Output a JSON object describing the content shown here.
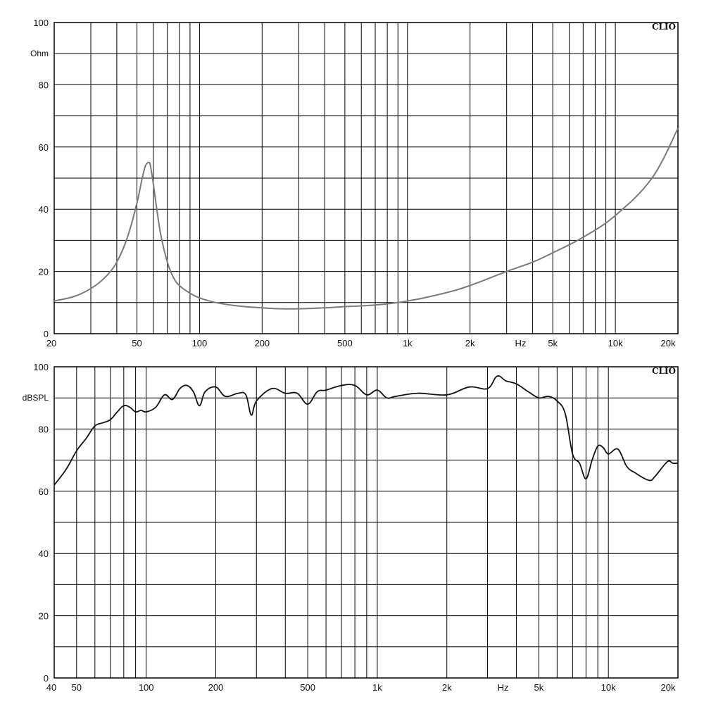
{
  "chart_data": [
    {
      "type": "line",
      "brand": "CLIO",
      "ylabel": "Ohm",
      "xlabel": "Hz",
      "x_scale": "log",
      "xlim": [
        20,
        20000
      ],
      "ylim": [
        0,
        100
      ],
      "y_ticks": [
        {
          "value": 0,
          "label": "0"
        },
        {
          "value": 20,
          "label": "20"
        },
        {
          "value": 40,
          "label": "40"
        },
        {
          "value": 60,
          "label": "60"
        },
        {
          "value": 80,
          "label": "80"
        },
        {
          "value": 100,
          "label": "100"
        }
      ],
      "x_ticks": [
        {
          "value": 20,
          "label": "20"
        },
        {
          "value": 50,
          "label": "50"
        },
        {
          "value": 100,
          "label": "100"
        },
        {
          "value": 200,
          "label": "200"
        },
        {
          "value": 500,
          "label": "500"
        },
        {
          "value": 1000,
          "label": "1k"
        },
        {
          "value": 2000,
          "label": "2k"
        },
        {
          "value": 5000,
          "label": "5k"
        },
        {
          "value": 10000,
          "label": "10k"
        },
        {
          "value": 20000,
          "label": "20k"
        }
      ],
      "grid": true,
      "line_color": "#7a7a7a",
      "series": [
        {
          "x": [
            20,
            25,
            30,
            35,
            40,
            45,
            50,
            53,
            55,
            57,
            58,
            60,
            62,
            65,
            70,
            75,
            80,
            90,
            100,
            120,
            150,
            200,
            250,
            300,
            400,
            500,
            700,
            1000,
            1500,
            2000,
            3000,
            4000,
            5000,
            7000,
            10000,
            15000,
            20000
          ],
          "y": [
            10.5,
            12,
            14.5,
            18,
            23,
            31,
            42,
            50,
            54,
            55,
            54,
            48,
            41,
            32,
            23,
            18,
            15.5,
            13,
            11.5,
            10,
            9,
            8.3,
            8,
            8,
            8.3,
            8.7,
            9.2,
            10.5,
            13,
            15.5,
            20,
            23,
            26,
            31,
            38,
            50,
            66
          ]
        }
      ]
    },
    {
      "type": "line",
      "brand": "CLIO",
      "ylabel": "dBSPL",
      "xlabel": "Hz",
      "x_scale": "log",
      "xlim": [
        40,
        20000
      ],
      "ylim": [
        0,
        100
      ],
      "y_ticks": [
        {
          "value": 0,
          "label": "0"
        },
        {
          "value": 20,
          "label": "20"
        },
        {
          "value": 40,
          "label": "40"
        },
        {
          "value": 60,
          "label": "60"
        },
        {
          "value": 80,
          "label": "80"
        },
        {
          "value": 100,
          "label": "100"
        }
      ],
      "x_ticks": [
        {
          "value": 40,
          "label": "40"
        },
        {
          "value": 50,
          "label": "50"
        },
        {
          "value": 100,
          "label": "100"
        },
        {
          "value": 200,
          "label": "200"
        },
        {
          "value": 500,
          "label": "500"
        },
        {
          "value": 1000,
          "label": "1k"
        },
        {
          "value": 2000,
          "label": "2k"
        },
        {
          "value": 5000,
          "label": "5k"
        },
        {
          "value": 10000,
          "label": "10k"
        },
        {
          "value": 20000,
          "label": "20k"
        }
      ],
      "grid": true,
      "line_color": "#111111",
      "series": [
        {
          "x": [
            40,
            45,
            50,
            55,
            60,
            65,
            70,
            75,
            80,
            85,
            90,
            95,
            100,
            110,
            120,
            130,
            140,
            150,
            160,
            170,
            180,
            200,
            220,
            250,
            270,
            285,
            300,
            350,
            400,
            450,
            500,
            550,
            600,
            700,
            800,
            900,
            1000,
            1100,
            1200,
            1500,
            2000,
            2500,
            3000,
            3300,
            3600,
            4000,
            4500,
            5000,
            5500,
            6000,
            6500,
            7000,
            7500,
            8000,
            8500,
            9000,
            9500,
            10000,
            11000,
            12000,
            13000,
            15000,
            16000,
            18000,
            19000,
            20000
          ],
          "y": [
            62,
            67,
            73,
            77,
            81,
            82,
            83,
            85.5,
            87.5,
            87,
            85.5,
            86,
            85.5,
            87,
            91,
            89.5,
            93,
            94,
            92,
            87.5,
            92,
            93.5,
            90.5,
            91.5,
            91,
            84.5,
            89,
            93,
            91.5,
            91.5,
            88,
            92,
            92.5,
            94,
            94,
            91,
            92.5,
            90,
            90.5,
            91.5,
            91,
            93.5,
            93,
            97,
            95.5,
            94.5,
            92,
            90,
            90.5,
            89,
            85,
            72,
            69,
            64,
            70,
            74.5,
            74,
            72,
            73.5,
            68,
            66,
            63.5,
            65,
            69.5,
            69,
            69
          ]
        }
      ]
    }
  ]
}
